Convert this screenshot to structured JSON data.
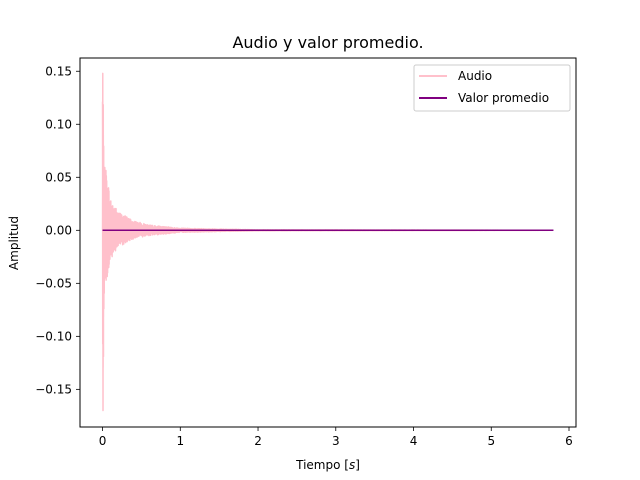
{
  "chart_data": {
    "type": "line",
    "title": "Audio y valor promedio.",
    "xlabel": "Tiempo [s]",
    "xlabel_parts": {
      "prefix": "Tiempo [",
      "unit": "s",
      "suffix": "]"
    },
    "ylabel": "Amplitud",
    "xlim": [
      -0.29,
      6.09
    ],
    "ylim": [
      -0.1855,
      0.1625
    ],
    "xticks": [
      0,
      1,
      2,
      3,
      4,
      5,
      6
    ],
    "xtick_labels": [
      "0",
      "1",
      "2",
      "3",
      "4",
      "5",
      "6"
    ],
    "yticks": [
      -0.15,
      -0.1,
      -0.05,
      0.0,
      0.05,
      0.1,
      0.15
    ],
    "ytick_labels": [
      "−0.15",
      "−0.10",
      "−0.05",
      "0.00",
      "0.05",
      "0.10",
      "0.15"
    ],
    "grid": false,
    "legend_position": "top-right",
    "series": [
      {
        "name": "Audio",
        "color": "#ffc0cb",
        "kind": "decaying-oscillation",
        "x_range": [
          0,
          5.8
        ],
        "envelope": [
          {
            "t": 0.0,
            "upper": 0.148,
            "lower": -0.17
          },
          {
            "t": 0.02,
            "upper": 0.06,
            "lower": -0.06
          },
          {
            "t": 0.05,
            "upper": 0.058,
            "lower": -0.05
          },
          {
            "t": 0.1,
            "upper": 0.03,
            "lower": -0.03
          },
          {
            "t": 0.2,
            "upper": 0.018,
            "lower": -0.016
          },
          {
            "t": 0.4,
            "upper": 0.009,
            "lower": -0.008
          },
          {
            "t": 0.6,
            "upper": 0.005,
            "lower": -0.005
          },
          {
            "t": 1.0,
            "upper": 0.002,
            "lower": -0.002
          },
          {
            "t": 2.0,
            "upper": 0.0005,
            "lower": -0.0005
          },
          {
            "t": 5.8,
            "upper": 0.0,
            "lower": 0.0
          }
        ]
      },
      {
        "name": "Valor promedio",
        "color": "#800080",
        "kind": "constant",
        "x": [
          0,
          5.8
        ],
        "values": [
          0.0,
          0.0
        ]
      }
    ]
  }
}
